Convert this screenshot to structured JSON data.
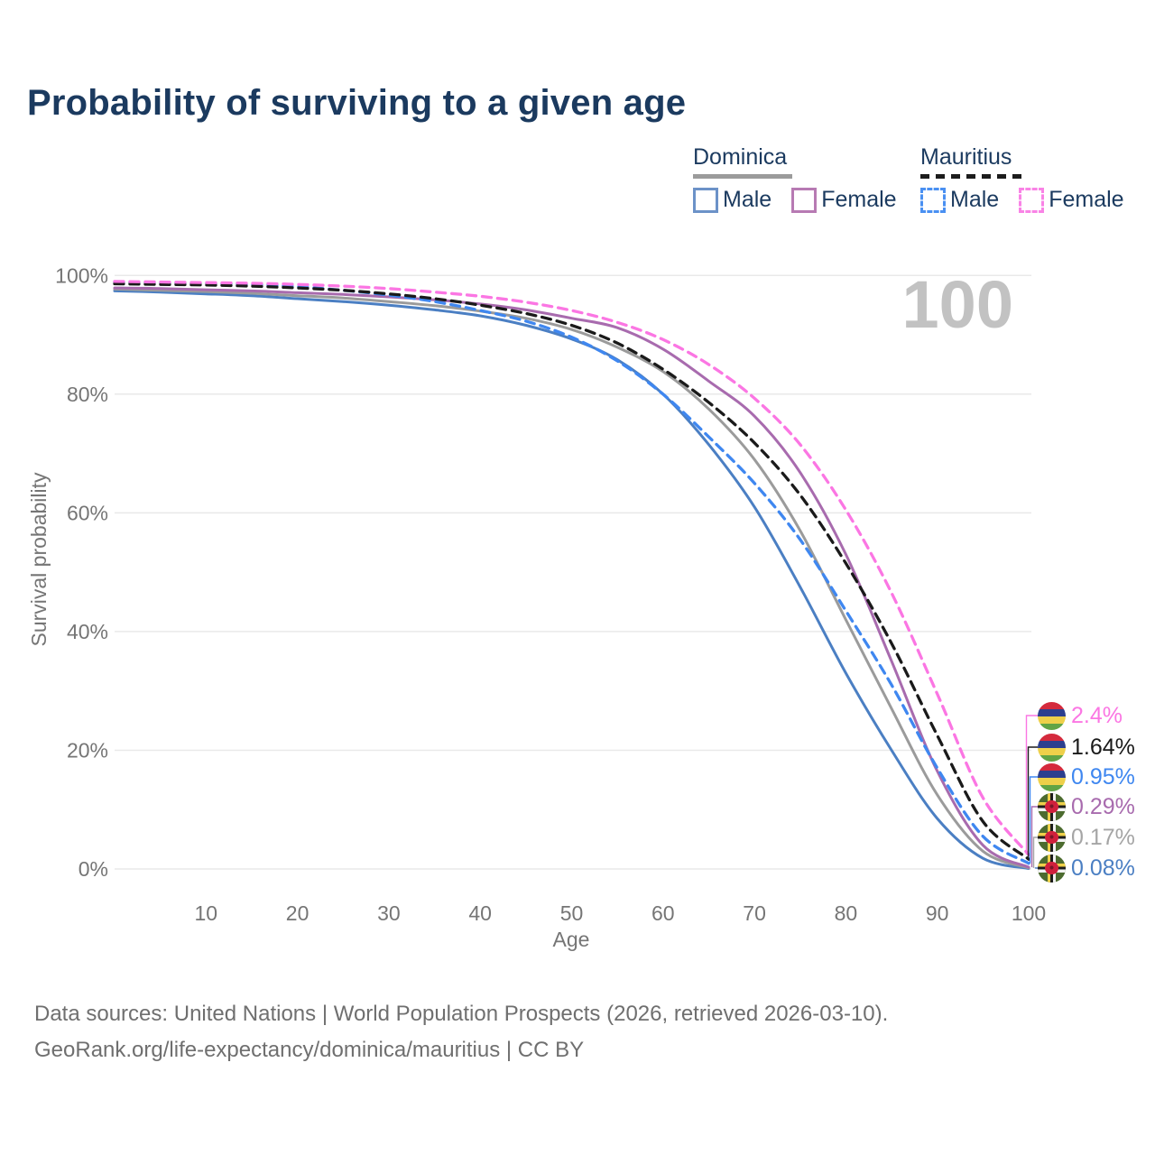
{
  "title": "Probability of surviving to a given age",
  "watermark_age": "100",
  "legend": {
    "groups": [
      {
        "name": "Dominica",
        "line_style": "solid",
        "items": [
          {
            "label": "Male",
            "color": "#4b7fc3"
          },
          {
            "label": "Female",
            "color": "#a86bae"
          }
        ]
      },
      {
        "name": "Mauritius",
        "line_style": "dashed",
        "items": [
          {
            "label": "Male",
            "color": "#3f87f0"
          },
          {
            "label": "Female",
            "color": "#fb76e3"
          }
        ]
      }
    ]
  },
  "axes": {
    "x_label": "Age",
    "y_label": "Survival probability",
    "y_ticks": [
      {
        "label": "0%",
        "value": 0
      },
      {
        "label": "20%",
        "value": 20
      },
      {
        "label": "40%",
        "value": 40
      },
      {
        "label": "60%",
        "value": 60
      },
      {
        "label": "80%",
        "value": 80
      },
      {
        "label": "100%",
        "value": 100
      }
    ],
    "x_ticks": [
      {
        "label": "10",
        "value": 10
      },
      {
        "label": "20",
        "value": 20
      },
      {
        "label": "30",
        "value": 30
      },
      {
        "label": "40",
        "value": 40
      },
      {
        "label": "50",
        "value": 50
      },
      {
        "label": "60",
        "value": 60
      },
      {
        "label": "70",
        "value": 70
      },
      {
        "label": "80",
        "value": 80
      },
      {
        "label": "90",
        "value": 90
      },
      {
        "label": "100",
        "value": 100
      }
    ]
  },
  "end_labels": [
    {
      "value": "2.4%",
      "value_pct": 2.4,
      "color": "#fb76e3",
      "flag": "mauritius"
    },
    {
      "value": "1.64%",
      "value_pct": 1.64,
      "color": "#1a1a1a",
      "flag": "mauritius"
    },
    {
      "value": "0.95%",
      "value_pct": 0.95,
      "color": "#3f87f0",
      "flag": "mauritius"
    },
    {
      "value": "0.29%",
      "value_pct": 0.29,
      "color": "#a86bae",
      "flag": "dominica"
    },
    {
      "value": "0.17%",
      "value_pct": 0.17,
      "color": "#a5a5a5",
      "flag": "dominica"
    },
    {
      "value": "0.08%",
      "value_pct": 0.08,
      "color": "#4b7fc3",
      "flag": "dominica"
    }
  ],
  "footer": {
    "line1": "Data sources: United Nations | World Population Prospects (2026, retrieved 2026-03-10).",
    "line2": "GeoRank.org/life-expectancy/dominica/mauritius | CC BY"
  },
  "chart_data": {
    "type": "line",
    "title": "Probability of surviving to a given age",
    "xlabel": "Age",
    "ylabel": "Survival probability",
    "xlim": [
      0,
      100
    ],
    "ylim": [
      0,
      100
    ],
    "grid": "horizontal",
    "legend_position": "top-right",
    "x": [
      0,
      5,
      10,
      15,
      20,
      25,
      30,
      35,
      40,
      45,
      50,
      55,
      60,
      65,
      70,
      75,
      80,
      85,
      90,
      95,
      100
    ],
    "series": [
      {
        "name": "Dominica — Male",
        "country": "Dominica",
        "sex": "Male",
        "line_style": "solid",
        "color": "#4b7fc3",
        "end_label": "0.08%",
        "values": [
          97.4,
          97.2,
          96.9,
          96.6,
          96.1,
          95.6,
          95.0,
          94.2,
          93.2,
          91.6,
          89.3,
          85.8,
          80.0,
          71.5,
          61.0,
          47.5,
          33.0,
          20.0,
          8.5,
          1.8,
          0.08
        ]
      },
      {
        "name": "Dominica — Both sexes",
        "country": "Dominica",
        "sex": "Both",
        "line_style": "solid",
        "color": "#9b9b9b",
        "end_label": "0.17%",
        "values": [
          97.7,
          97.5,
          97.3,
          97.0,
          96.6,
          96.2,
          95.6,
          94.9,
          94.0,
          92.8,
          90.9,
          87.9,
          83.8,
          77.5,
          69.0,
          57.0,
          42.0,
          27.0,
          12.5,
          3.0,
          0.17
        ]
      },
      {
        "name": "Dominica — Female",
        "country": "Dominica",
        "sex": "Female",
        "line_style": "solid",
        "color": "#a86bae",
        "end_label": "0.29%",
        "values": [
          97.9,
          97.8,
          97.6,
          97.4,
          97.1,
          96.8,
          96.4,
          95.9,
          95.2,
          94.2,
          92.8,
          91.2,
          87.6,
          82.2,
          76.3,
          66.8,
          53.0,
          35.0,
          16.5,
          4.0,
          0.29
        ]
      },
      {
        "name": "Mauritius — Male",
        "country": "Mauritius",
        "sex": "Male",
        "line_style": "dashed",
        "color": "#3f87f0",
        "end_label": "0.95%",
        "values": [
          98.9,
          98.8,
          98.7,
          98.5,
          98.1,
          97.5,
          96.7,
          95.6,
          94.1,
          92.3,
          89.6,
          85.6,
          80.0,
          72.8,
          65.0,
          55.5,
          43.5,
          31.0,
          17.0,
          5.5,
          0.95
        ]
      },
      {
        "name": "Mauritius — Both sexes",
        "country": "Mauritius",
        "sex": "Both",
        "line_style": "dashed",
        "color": "#1a1a1a",
        "end_label": "1.64%",
        "values": [
          98.6,
          98.5,
          98.4,
          98.2,
          97.9,
          97.5,
          96.9,
          96.1,
          95.0,
          93.6,
          91.6,
          88.6,
          84.2,
          78.6,
          71.8,
          63.0,
          51.5,
          38.0,
          22.5,
          8.0,
          1.64
        ]
      },
      {
        "name": "Mauritius — Female",
        "country": "Mauritius",
        "sex": "Female",
        "line_style": "dashed",
        "color": "#fb76e3",
        "end_label": "2.4%",
        "values": [
          99.0,
          98.9,
          98.8,
          98.7,
          98.5,
          98.2,
          97.8,
          97.2,
          96.5,
          95.5,
          94.1,
          92.1,
          89.2,
          85.0,
          79.3,
          71.5,
          60.5,
          46.5,
          29.5,
          12.0,
          2.4
        ]
      }
    ]
  }
}
